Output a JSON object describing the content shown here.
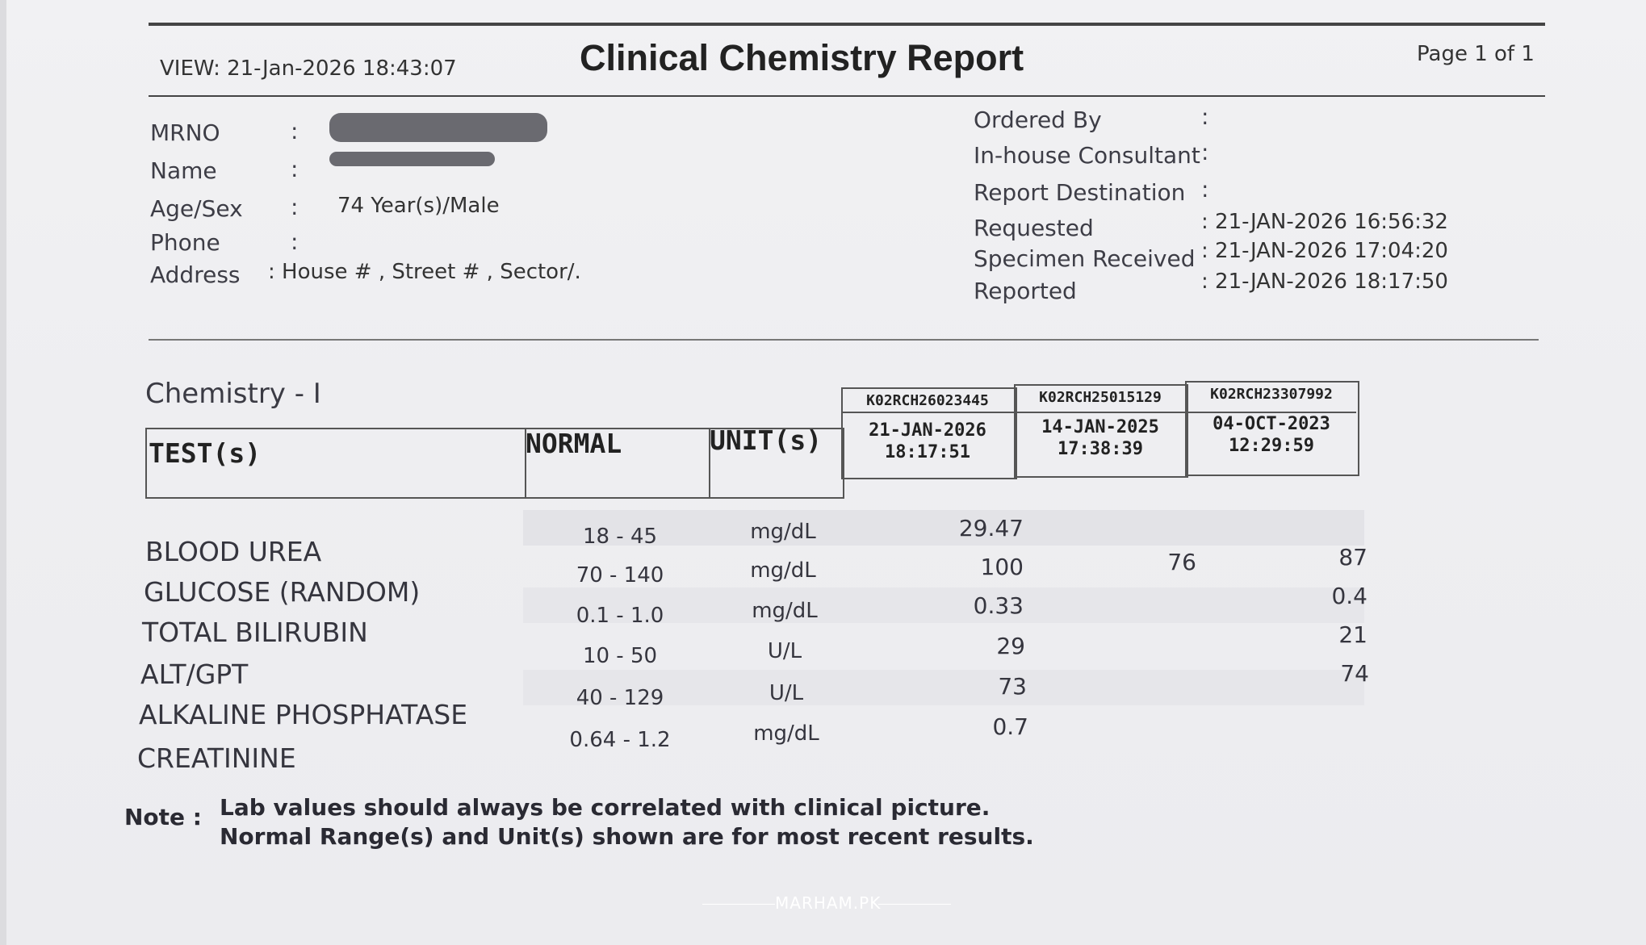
{
  "header": {
    "view": "VIEW: 21-Jan-2026 18:43:07",
    "title": "Clinical Chemistry Report",
    "page": "Page 1 of 1"
  },
  "patient": {
    "mrno_label": "MRNO",
    "name_label": "Name",
    "agesex_label": "Age/Sex",
    "agesex_value": "74 Year(s)/Male",
    "phone_label": "Phone",
    "address_label": "Address",
    "address_value": ": House # , Street # , Sector/.",
    "colon": ":"
  },
  "order": {
    "ordered_by_label": "Ordered By",
    "consultant_label": "In-house Consultant",
    "destination_label": "Report Destination",
    "requested_label": "Requested",
    "requested_value": ": 21-JAN-2026 16:56:32",
    "received_label": "Specimen Received",
    "received_value": ": 21-JAN-2026 17:04:20",
    "reported_label": "Reported",
    "reported_value": ": 21-JAN-2026 18:17:50"
  },
  "section_title": "Chemistry - I",
  "table": {
    "col_test": "TEST(s)",
    "col_normal": "NORMAL",
    "col_unit": "UNIT(s)",
    "accessions": [
      {
        "id": "K02RCH26023445",
        "date": "21-JAN-2026",
        "time": "18:17:51"
      },
      {
        "id": "K02RCH25015129",
        "date": "14-JAN-2025",
        "time": "17:38:39"
      },
      {
        "id": "K02RCH23307992",
        "date": "04-OCT-2023",
        "time": "12:29:59"
      }
    ],
    "rows": [
      {
        "test": "BLOOD UREA",
        "normal": "18 - 45",
        "unit": "mg/dL",
        "v1": "29.47",
        "v2": "",
        "v3": ""
      },
      {
        "test": "GLUCOSE (RANDOM)",
        "normal": "70 - 140",
        "unit": "mg/dL",
        "v1": "100",
        "v2": "76",
        "v3": "87"
      },
      {
        "test": "TOTAL BILIRUBIN",
        "normal": "0.1 - 1.0",
        "unit": "mg/dL",
        "v1": "0.33",
        "v2": "",
        "v3": "0.4"
      },
      {
        "test": "ALT/GPT",
        "normal": "10 - 50",
        "unit": "U/L",
        "v1": "29",
        "v2": "",
        "v3": "21"
      },
      {
        "test": "ALKALINE PHOSPHATASE",
        "normal": "40 - 129",
        "unit": "U/L",
        "v1": "73",
        "v2": "",
        "v3": "74"
      },
      {
        "test": "CREATININE",
        "normal": "0.64 - 1.2",
        "unit": "mg/dL",
        "v1": "0.7",
        "v2": "",
        "v3": ""
      }
    ]
  },
  "note": {
    "label": "Note :",
    "line1": "Lab values should always be correlated with clinical picture.",
    "line2": "Normal Range(s) and Unit(s) shown are for most recent results."
  },
  "watermark": "MARHAM.PK"
}
